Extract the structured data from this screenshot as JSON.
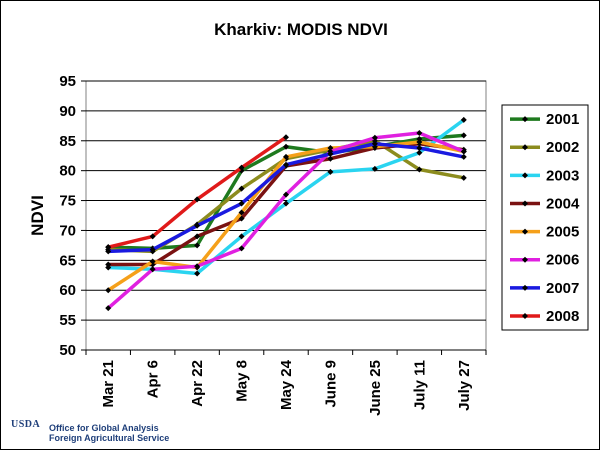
{
  "chart_data": {
    "type": "line",
    "title": "Kharkiv:  MODIS NDVI",
    "xlabel": "",
    "ylabel": "NDVI",
    "categories": [
      "Mar 21",
      "Apr 6",
      "Apr 22",
      "May 8",
      "May 24",
      "June 9",
      "June 25",
      "July 11",
      "July 27"
    ],
    "ylim": [
      50,
      95
    ],
    "yticks": [
      50,
      55,
      60,
      65,
      70,
      75,
      80,
      85,
      90,
      95
    ],
    "grid": true,
    "legend_position": "right",
    "series": [
      {
        "name": "2001",
        "color": "#1e7a1e",
        "values": [
          67.2,
          67.0,
          67.5,
          80.0,
          84.0,
          83.0,
          84.0,
          85.3,
          85.9
        ]
      },
      {
        "name": "2002",
        "color": "#8c8c1e",
        "values": [
          66.8,
          66.5,
          71.0,
          77.0,
          82.0,
          83.5,
          85.0,
          80.2,
          78.8
        ]
      },
      {
        "name": "2003",
        "color": "#2ad4f0",
        "values": [
          63.8,
          63.5,
          62.8,
          69.0,
          74.5,
          79.8,
          80.3,
          83.0,
          88.5
        ]
      },
      {
        "name": "2004",
        "color": "#7a1212",
        "values": [
          64.3,
          64.3,
          69.0,
          72.0,
          80.8,
          82.0,
          83.8,
          84.5,
          83.5
        ]
      },
      {
        "name": "2005",
        "color": "#f5a01a",
        "values": [
          60.0,
          64.8,
          63.8,
          73.0,
          82.3,
          83.8,
          84.0,
          84.8,
          83.2
        ]
      },
      {
        "name": "2006",
        "color": "#e020e0",
        "values": [
          57.0,
          63.5,
          64.0,
          67.0,
          76.0,
          83.2,
          85.5,
          86.3,
          83.2
        ]
      },
      {
        "name": "2007",
        "color": "#1a1ae0",
        "values": [
          66.5,
          66.8,
          70.8,
          74.5,
          81.0,
          82.8,
          84.5,
          83.8,
          82.3
        ]
      },
      {
        "name": "2008",
        "color": "#e01a1a",
        "values": [
          67.2,
          69.0,
          75.2,
          80.5,
          85.6,
          null,
          null,
          null,
          null
        ]
      }
    ],
    "plot_area_color": "#ffffff"
  },
  "footer": {
    "logo_text": "USDA",
    "line1": "Office for Global Analysis",
    "line2": "Foreign Agricultural Service"
  }
}
